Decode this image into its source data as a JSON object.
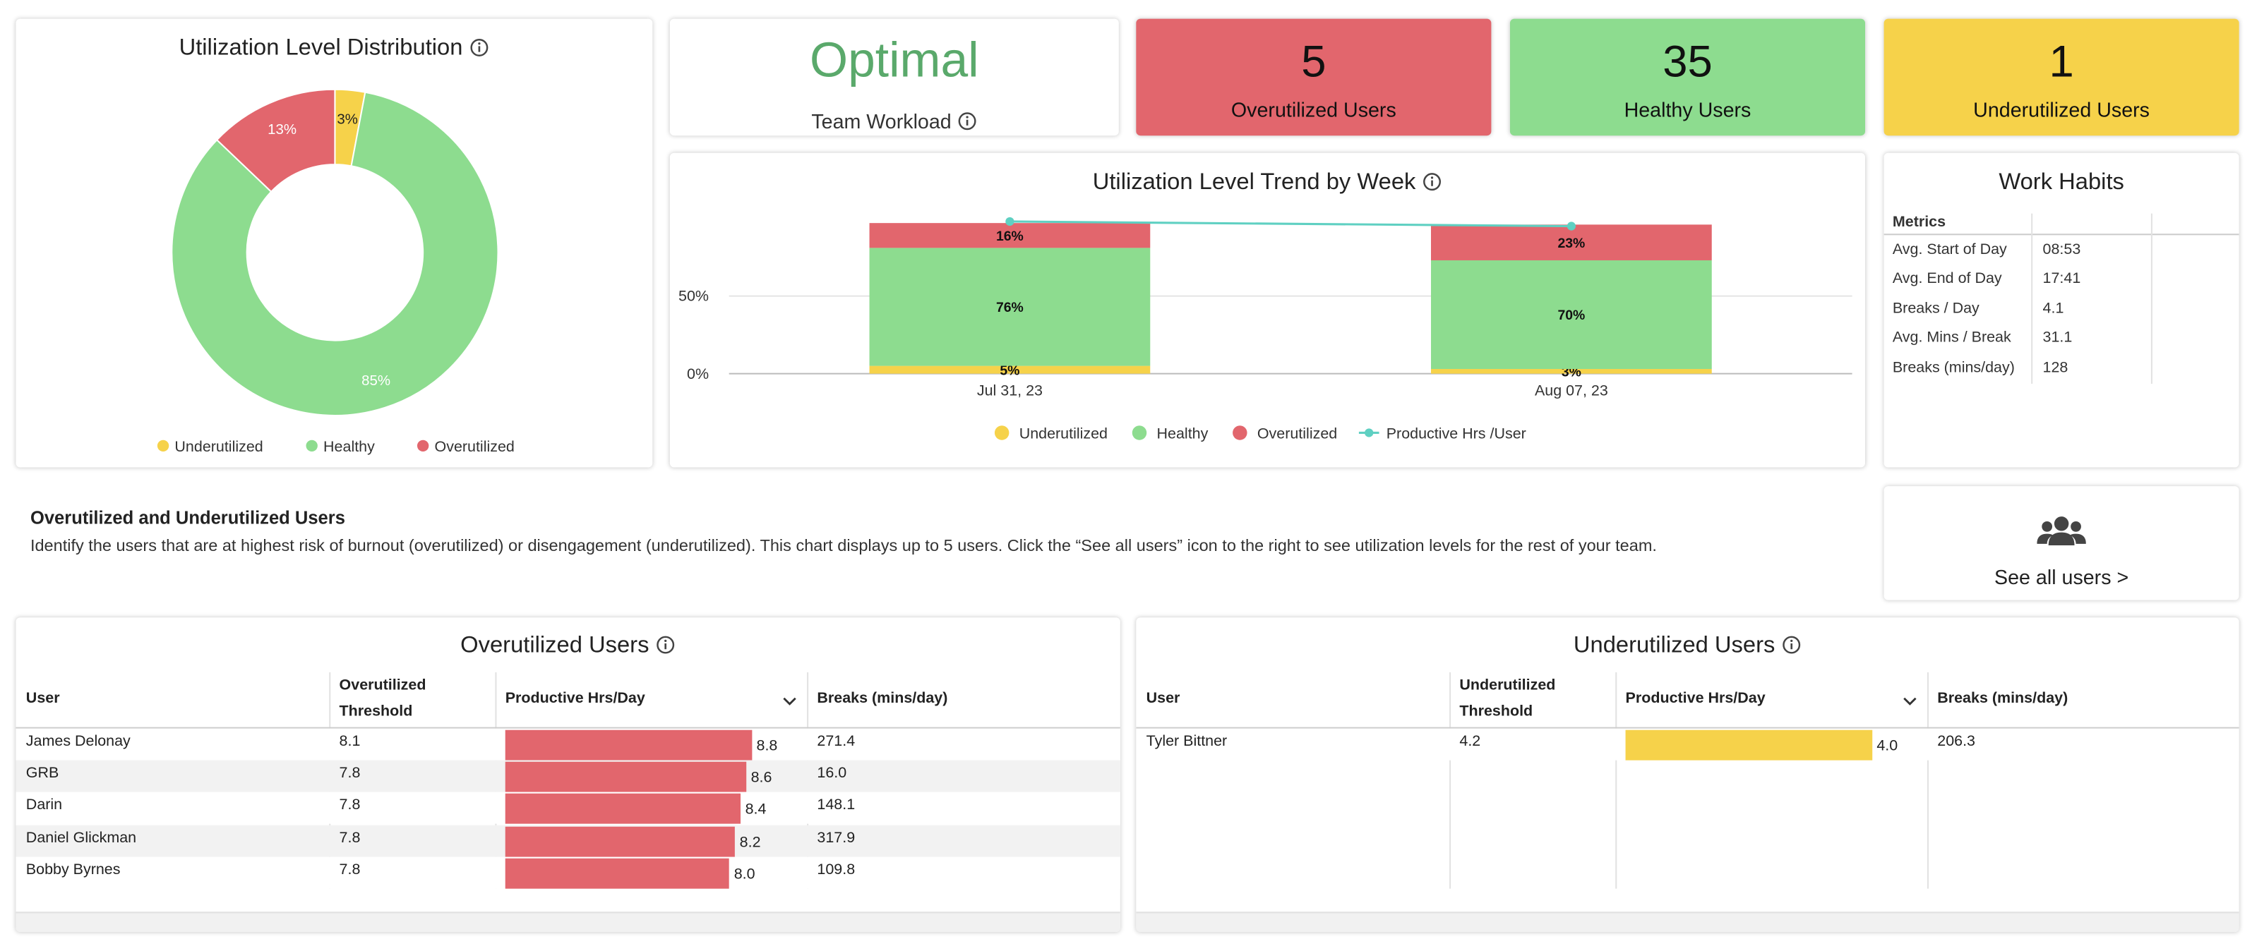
{
  "chart_data": [
    {
      "type": "pie",
      "title": "Utilization Level Distribution",
      "donut": true,
      "categories": [
        "Underutilized",
        "Healthy",
        "Overutilized"
      ],
      "values": [
        3,
        85,
        13
      ],
      "value_labels": [
        "3%",
        "85%",
        "13%"
      ],
      "colors": [
        "#f6d24a",
        "#8ddc8f",
        "#e2666d"
      ]
    },
    {
      "type": "bar",
      "stacked": true,
      "title": "Utilization Level Trend by Week",
      "categories": [
        "Jul 31, 23",
        "Aug 07, 23"
      ],
      "series": [
        {
          "name": "Underutilized",
          "color": "#f6d24a",
          "values": [
            5,
            3
          ],
          "value_labels": [
            "5%",
            "3%"
          ]
        },
        {
          "name": "Healthy",
          "color": "#8ddc8f",
          "values": [
            76,
            70
          ],
          "value_labels": [
            "76%",
            "70%"
          ]
        },
        {
          "name": "Overutilized",
          "color": "#e2666d",
          "values": [
            16,
            23
          ],
          "value_labels": [
            "16%",
            "23%"
          ]
        },
        {
          "name": "Productive Hrs /User",
          "type": "line",
          "color": "#5fd0c2",
          "values": [
            98,
            95
          ]
        }
      ],
      "ylim": [
        0,
        105
      ],
      "yticks": [
        {
          "value": 0,
          "label": "0%"
        },
        {
          "value": 50,
          "label": "50%"
        }
      ],
      "grid": true
    }
  ],
  "workload": {
    "value": "Optimal",
    "label": "Team Workload"
  },
  "kpis": [
    {
      "value": 5,
      "label": "Overutilized Users",
      "color": "#e2666d"
    },
    {
      "value": 35,
      "label": "Healthy Users",
      "color": "#8ddc8f"
    },
    {
      "value": 1,
      "label": "Underutilized Users",
      "color": "#f6d24a"
    }
  ],
  "work_habits": {
    "title": "Work Habits",
    "header": "Metrics",
    "rows": [
      [
        "Avg. Start of Day",
        "08:53"
      ],
      [
        "Avg. End of Day",
        "17:41"
      ],
      [
        "Breaks / Day",
        "4.1"
      ],
      [
        "Avg. Mins / Break",
        "31.1"
      ],
      [
        "Breaks (mins/day)",
        "128"
      ]
    ]
  },
  "section": {
    "title": "Overutilized and Underutilized Users",
    "description": "Identify the users that are at highest risk of burnout (overutilized) or disengagement (underutilized). This chart displays up to 5 users. Click the “See all users” icon to the right to see utilization levels for the rest of your team."
  },
  "see_all": "See all users >",
  "tables": [
    {
      "title": "Overutilized Users",
      "color": "#e2666d",
      "columns": [
        "User",
        "Overutilized Threshold",
        "Productive Hrs/Day",
        "Breaks (mins/day)"
      ],
      "rows": [
        {
          "user": "James Delonay",
          "threshold": "8.1",
          "productive": {
            "value": 8.8,
            "label": "8.8"
          },
          "breaks": "271.4"
        },
        {
          "user": "GRB",
          "threshold": "7.8",
          "productive": {
            "value": 8.6,
            "label": "8.6"
          },
          "breaks": "16.0"
        },
        {
          "user": "Darin",
          "threshold": "7.8",
          "productive": {
            "value": 8.4,
            "label": "8.4"
          },
          "breaks": "148.1"
        },
        {
          "user": "Daniel Glickman",
          "threshold": "7.8",
          "productive": {
            "value": 8.2,
            "label": "8.2"
          },
          "breaks": "317.9"
        },
        {
          "user": "Bobby Byrnes",
          "threshold": "7.8",
          "productive": {
            "value": 8.0,
            "label": "8.0"
          },
          "breaks": "109.8"
        }
      ]
    },
    {
      "title": "Underutilized Users",
      "color": "#f6d24a",
      "columns": [
        "User",
        "Underutilized Threshold",
        "Productive Hrs/Day",
        "Breaks (mins/day)"
      ],
      "rows": [
        {
          "user": "Tyler Bittner",
          "threshold": "4.2",
          "productive": {
            "value": 4.0,
            "label": "4.0"
          },
          "breaks": "206.3"
        }
      ]
    }
  ]
}
